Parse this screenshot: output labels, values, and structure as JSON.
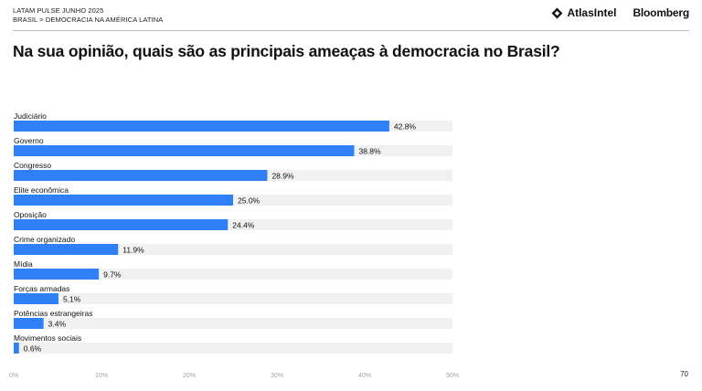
{
  "header": {
    "kicker_line1": "LATAM PULSE JUNHO 2025",
    "kicker_line2": "BRASIL > DEMOCRACIA NA AMÉRICA LATINA",
    "logo_atlas": "AtlasIntel",
    "logo_bloomberg": "Bloomberg"
  },
  "chart_data": {
    "type": "bar",
    "orientation": "horizontal",
    "title": "Na sua opinião, quais são as principais ameaças à democracia no Brasil?",
    "categories": [
      "Judiciário",
      "Governo",
      "Congresso",
      "Elite econômica",
      "Oposição",
      "Crime organizado",
      "Mídia",
      "Forças armadas",
      "Potências estrangeiras",
      "Movimentos sociais"
    ],
    "values": [
      42.8,
      38.8,
      28.9,
      25.0,
      24.4,
      11.9,
      9.7,
      5.1,
      3.4,
      0.6
    ],
    "value_labels": [
      "42.8%",
      "38.8%",
      "28.9%",
      "25.0%",
      "24.4%",
      "11.9%",
      "9.7%",
      "5.1%",
      "3.4%",
      "0.6%"
    ],
    "xlim": [
      0,
      50
    ],
    "xticks": [
      0,
      10,
      20,
      30,
      40,
      50
    ],
    "xtick_labels": [
      "0%",
      "10%",
      "20%",
      "30%",
      "40%",
      "50%"
    ],
    "grid": false,
    "legend": "none",
    "bar_color": "#2f80f6",
    "track_color": "#f1f1f1"
  },
  "footer": {
    "page_number": "70"
  }
}
